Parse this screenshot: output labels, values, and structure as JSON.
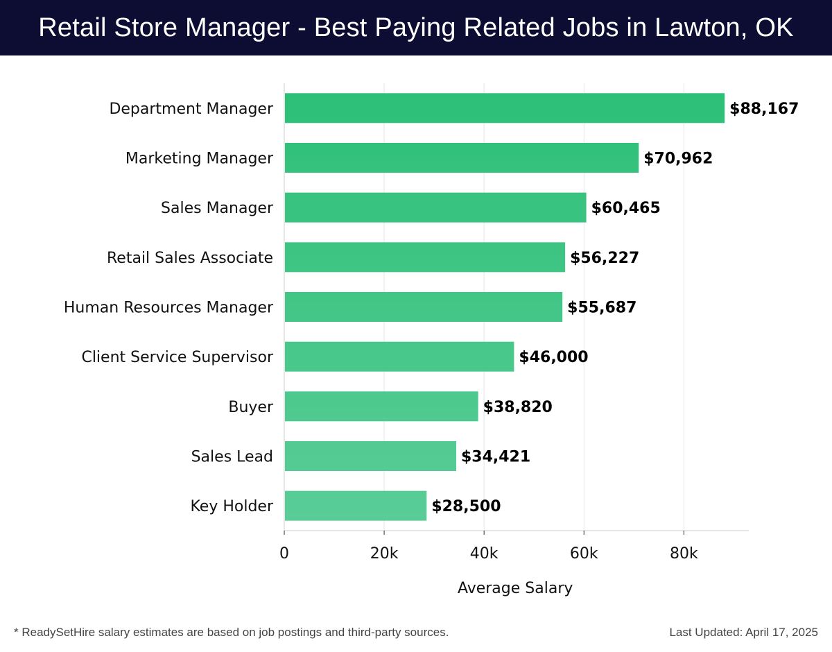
{
  "header": {
    "title": "Retail Store Manager - Best Paying Related Jobs in Lawton, OK"
  },
  "footer": {
    "note": "* ReadySetHire salary estimates are based on job postings and third-party sources.",
    "updated": "Last Updated: April 17, 2025"
  },
  "colors": {
    "header_bg": "#0d0d33",
    "bar_top": "#2bbf76",
    "bar_bottom": "#5bcd98"
  },
  "chart_data": {
    "type": "bar",
    "orientation": "horizontal",
    "categories": [
      "Department Manager",
      "Marketing Manager",
      "Sales Manager",
      "Retail Sales Associate",
      "Human Resources Manager",
      "Client Service Supervisor",
      "Buyer",
      "Sales Lead",
      "Key Holder"
    ],
    "values": [
      88167,
      70962,
      60465,
      56227,
      55687,
      46000,
      38820,
      34421,
      28500
    ],
    "value_labels": [
      "$88,167",
      "$70,962",
      "$60,465",
      "$56,227",
      "$55,687",
      "$46,000",
      "$38,820",
      "$34,421",
      "$28,500"
    ],
    "xlabel": "Average Salary",
    "ylabel": "",
    "xlim": [
      0,
      93000
    ],
    "xticks": [
      0,
      20000,
      40000,
      60000,
      80000
    ],
    "xtick_labels": [
      "0",
      "20k",
      "40k",
      "60k",
      "80k"
    ],
    "grid": "vertical"
  }
}
